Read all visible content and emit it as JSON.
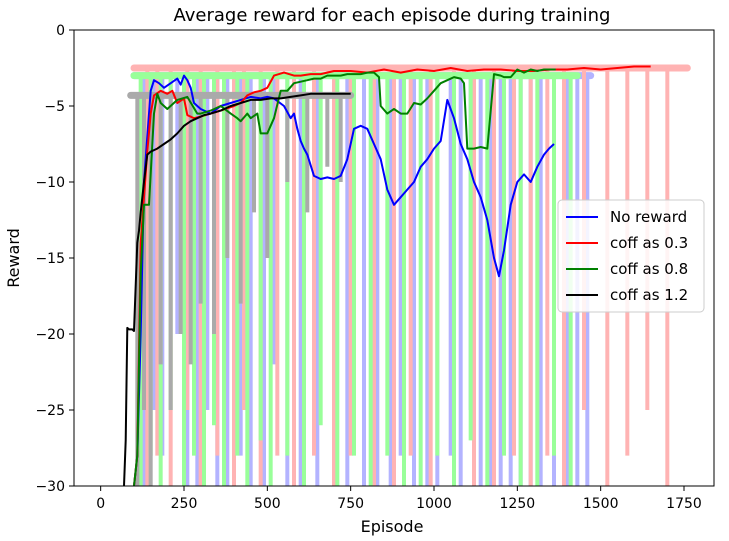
{
  "chart_data": {
    "type": "line",
    "title": "Average reward for each episode during training",
    "xlabel": "Episode",
    "ylabel": "Reward",
    "xlim": [
      -80,
      1840
    ],
    "ylim": [
      -30,
      0
    ],
    "xticks": [
      0,
      250,
      500,
      750,
      1000,
      1250,
      1500,
      1750
    ],
    "yticks": [
      0,
      -5,
      -10,
      -15,
      -20,
      -25,
      -30
    ],
    "xtick_labels": [
      "0",
      "250",
      "500",
      "750",
      "1000",
      "1250",
      "1500",
      "1750"
    ],
    "ytick_labels": [
      "0",
      "−5",
      "−10",
      "−15",
      "−20",
      "−25",
      "−30"
    ],
    "grid": false,
    "legend_position": "center-right",
    "series": [
      {
        "name": "No reward",
        "color": "#0000ff",
        "raw_color": "#b3b3ff",
        "raw_range": [
          100,
          1470
        ],
        "raw_level": -3.0,
        "dips": [
          [
            130,
            -30
          ],
          [
            160,
            -25
          ],
          [
            185,
            -28
          ],
          [
            230,
            -20
          ],
          [
            260,
            -30
          ],
          [
            290,
            -30
          ],
          [
            320,
            -25
          ],
          [
            350,
            -30
          ],
          [
            380,
            -30
          ],
          [
            420,
            -28
          ],
          [
            450,
            -30
          ],
          [
            490,
            -30
          ],
          [
            520,
            -22
          ],
          [
            560,
            -30
          ],
          [
            600,
            -30
          ],
          [
            650,
            -30
          ],
          [
            700,
            -30
          ],
          [
            740,
            -30
          ],
          [
            790,
            -30
          ],
          [
            830,
            -30
          ],
          [
            870,
            -30
          ],
          [
            900,
            -28
          ],
          [
            940,
            -30
          ],
          [
            980,
            -30
          ],
          [
            1010,
            -30
          ],
          [
            1050,
            -28
          ],
          [
            1080,
            -30
          ],
          [
            1110,
            -25
          ],
          [
            1140,
            -30
          ],
          [
            1170,
            -30
          ],
          [
            1200,
            -30
          ],
          [
            1230,
            -30
          ],
          [
            1260,
            -30
          ],
          [
            1290,
            -30
          ],
          [
            1320,
            -30
          ],
          [
            1360,
            -30
          ],
          [
            1400,
            -30
          ],
          [
            1430,
            -30
          ],
          [
            1460,
            -30
          ]
        ],
        "x": [
          100,
          110,
          120,
          130,
          140,
          150,
          160,
          175,
          190,
          210,
          230,
          240,
          250,
          260,
          270,
          280,
          290,
          300,
          330,
          360,
          390,
          420,
          450,
          480,
          500,
          520,
          550,
          570,
          580,
          590,
          600,
          610,
          620,
          640,
          660,
          680,
          700,
          720,
          740,
          760,
          780,
          800,
          820,
          840,
          860,
          880,
          900,
          920,
          940,
          960,
          980,
          1000,
          1020,
          1040,
          1060,
          1080,
          1100,
          1120,
          1140,
          1160,
          1180,
          1195,
          1210,
          1230,
          1250,
          1270,
          1290,
          1310,
          1330,
          1345,
          1360
        ],
        "y": [
          -30,
          -28,
          -20,
          -10,
          -7,
          -4,
          -3.3,
          -3.5,
          -3.8,
          -3.5,
          -3.2,
          -3.6,
          -3.0,
          -3.3,
          -3.8,
          -4.8,
          -5.0,
          -5.2,
          -5.5,
          -5.0,
          -4.8,
          -4.6,
          -4.4,
          -4.5,
          -4.4,
          -4.5,
          -5.0,
          -5.8,
          -5.5,
          -6.5,
          -7.3,
          -7.8,
          -8.2,
          -9.6,
          -9.8,
          -9.7,
          -9.8,
          -9.6,
          -8.5,
          -6.5,
          -6.3,
          -6.5,
          -7.5,
          -8.5,
          -10.5,
          -11.5,
          -11.0,
          -10.5,
          -10.0,
          -9.0,
          -8.5,
          -7.8,
          -7.3,
          -4.6,
          -5.8,
          -7.5,
          -8.5,
          -10.0,
          -11.0,
          -12.5,
          -15.0,
          -16.2,
          -14.5,
          -11.5,
          -10.0,
          -9.5,
          -10.0,
          -9.0,
          -8.2,
          -7.8,
          -7.5
        ]
      },
      {
        "name": "coff as 0.3",
        "color": "#ff0000",
        "raw_color": "#ffb3b3",
        "raw_range": [
          100,
          1760
        ],
        "raw_level": -2.5,
        "dips": [
          [
            140,
            -30
          ],
          [
            170,
            -28
          ],
          [
            210,
            -30
          ],
          [
            260,
            -25
          ],
          [
            300,
            -30
          ],
          [
            350,
            -28
          ],
          [
            400,
            -30
          ],
          [
            430,
            -25
          ],
          [
            480,
            -30
          ],
          [
            530,
            -28
          ],
          [
            580,
            -30
          ],
          [
            640,
            -28
          ],
          [
            700,
            -30
          ],
          [
            750,
            -28
          ],
          [
            820,
            -30
          ],
          [
            880,
            -30
          ],
          [
            930,
            -28
          ],
          [
            990,
            -30
          ],
          [
            1060,
            -28
          ],
          [
            1120,
            -30
          ],
          [
            1180,
            -30
          ],
          [
            1240,
            -28
          ],
          [
            1290,
            -30
          ],
          [
            1340,
            -28
          ],
          [
            1390,
            -30
          ],
          [
            1450,
            -25
          ],
          [
            1520,
            -30
          ],
          [
            1580,
            -28
          ],
          [
            1640,
            -25
          ],
          [
            1700,
            -30
          ]
        ],
        "x": [
          100,
          110,
          120,
          130,
          140,
          150,
          160,
          180,
          200,
          215,
          230,
          250,
          260,
          280,
          300,
          330,
          360,
          400,
          420,
          440,
          460,
          480,
          500,
          520,
          550,
          580,
          600,
          630,
          660,
          700,
          750,
          800,
          850,
          900,
          950,
          1000,
          1050,
          1100,
          1150,
          1200,
          1250,
          1300,
          1350,
          1400,
          1450,
          1500,
          1550,
          1600,
          1650
        ],
        "y": [
          -30,
          -28,
          -14,
          -11,
          -8,
          -5.5,
          -4.3,
          -4.0,
          -4.2,
          -4.0,
          -4.8,
          -4.5,
          -5.6,
          -5.8,
          -5.7,
          -5.5,
          -5.3,
          -5.0,
          -4.8,
          -4.3,
          -4.1,
          -4.0,
          -3.8,
          -3.0,
          -2.8,
          -3.0,
          -3.0,
          -2.9,
          -2.9,
          -2.7,
          -2.7,
          -2.8,
          -2.6,
          -2.8,
          -2.6,
          -2.7,
          -2.5,
          -2.7,
          -2.6,
          -2.6,
          -2.7,
          -2.7,
          -2.6,
          -2.6,
          -2.5,
          -2.6,
          -2.5,
          -2.4,
          -2.4
        ]
      },
      {
        "name": "coff as 0.8",
        "color": "#008000",
        "raw_color": "#99ff99",
        "raw_range": [
          100,
          1430
        ],
        "raw_level": -3.0,
        "dips": [
          [
            120,
            -30
          ],
          [
            150,
            -28
          ],
          [
            180,
            -30
          ],
          [
            210,
            -25
          ],
          [
            250,
            -30
          ],
          [
            280,
            -28
          ],
          [
            310,
            -30
          ],
          [
            340,
            -26
          ],
          [
            370,
            -30
          ],
          [
            410,
            -28
          ],
          [
            440,
            -30
          ],
          [
            480,
            -27
          ],
          [
            510,
            -30
          ],
          [
            560,
            -28
          ],
          [
            610,
            -30
          ],
          [
            660,
            -26
          ],
          [
            710,
            -30
          ],
          [
            760,
            -28
          ],
          [
            810,
            -30
          ],
          [
            860,
            -28
          ],
          [
            910,
            -30
          ],
          [
            960,
            -30
          ],
          [
            1010,
            -28
          ],
          [
            1060,
            -30
          ],
          [
            1110,
            -27
          ],
          [
            1160,
            -30
          ],
          [
            1210,
            -28
          ],
          [
            1260,
            -30
          ],
          [
            1310,
            -30
          ],
          [
            1360,
            -28
          ],
          [
            1410,
            -30
          ]
        ],
        "x": [
          100,
          110,
          120,
          130,
          140,
          145,
          160,
          170,
          180,
          200,
          230,
          260,
          290,
          300,
          330,
          360,
          390,
          410,
          420,
          440,
          450,
          470,
          480,
          500,
          520,
          540,
          560,
          580,
          600,
          620,
          640,
          660,
          680,
          700,
          720,
          740,
          760,
          780,
          800,
          820,
          835,
          840,
          860,
          880,
          900,
          920,
          940,
          960,
          980,
          1000,
          1020,
          1040,
          1060,
          1080,
          1090,
          1100,
          1120,
          1140,
          1160,
          1180,
          1200,
          1210,
          1230,
          1250,
          1270,
          1290,
          1310,
          1330,
          1350,
          1365
        ],
        "y": [
          -30,
          -28,
          -16,
          -11.5,
          -11.5,
          -11.5,
          -5.5,
          -4.2,
          -4.8,
          -5.2,
          -4.6,
          -4.4,
          -5.5,
          -5.5,
          -5.3,
          -5.0,
          -5.5,
          -5.8,
          -6.0,
          -5.5,
          -5.8,
          -5.5,
          -6.8,
          -6.8,
          -5.8,
          -4.0,
          -4.0,
          -3.5,
          -3.4,
          -3.3,
          -3.2,
          -3.2,
          -3.0,
          -3.0,
          -3.0,
          -2.9,
          -2.9,
          -2.9,
          -2.8,
          -2.8,
          -3.1,
          -5.0,
          -5.5,
          -5.2,
          -5.5,
          -5.5,
          -4.8,
          -4.9,
          -4.5,
          -4.0,
          -3.5,
          -3.3,
          -3.1,
          -3.2,
          -3.5,
          -7.8,
          -7.8,
          -7.7,
          -7.8,
          -2.9,
          -3.0,
          -3.1,
          -3.1,
          -2.6,
          -2.8,
          -2.6,
          -2.7,
          -2.6,
          -2.6,
          -2.6
        ]
      },
      {
        "name": "coff as 1.2",
        "color": "#000000",
        "raw_color": "#aaaaaa",
        "raw_range": [
          90,
          750
        ],
        "raw_level": -4.3,
        "dips": [
          [
            110,
            -30
          ],
          [
            130,
            -25
          ],
          [
            150,
            -30
          ],
          [
            180,
            -22
          ],
          [
            210,
            -25
          ],
          [
            240,
            -20
          ],
          [
            270,
            -22
          ],
          [
            300,
            -18
          ],
          [
            340,
            -20
          ],
          [
            380,
            -15
          ],
          [
            420,
            -18
          ],
          [
            460,
            -12
          ],
          [
            500,
            -15
          ],
          [
            560,
            -10
          ],
          [
            620,
            -12
          ],
          [
            680,
            -9
          ],
          [
            720,
            -10
          ]
        ],
        "x": [
          70,
          75,
          80,
          85,
          90,
          95,
          100,
          110,
          115,
          120,
          130,
          140,
          150,
          170,
          190,
          210,
          230,
          250,
          270,
          290,
          310,
          330,
          360,
          390,
          420,
          450,
          480,
          510,
          540,
          570,
          600,
          630,
          660,
          690,
          720,
          750
        ],
        "y": [
          -30,
          -27,
          -19.6,
          -19.7,
          -19.7,
          -19.7,
          -19.8,
          -14,
          -13.2,
          -12,
          -10,
          -8.2,
          -8.0,
          -7.8,
          -7.5,
          -7.2,
          -6.8,
          -6.3,
          -6.0,
          -5.8,
          -5.6,
          -5.5,
          -5.3,
          -5.0,
          -4.8,
          -4.6,
          -4.6,
          -4.5,
          -4.5,
          -4.4,
          -4.3,
          -4.2,
          -4.2,
          -4.2,
          -4.2,
          -4.2
        ]
      }
    ]
  }
}
